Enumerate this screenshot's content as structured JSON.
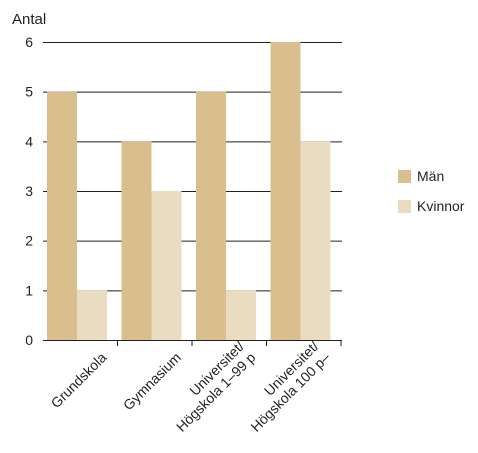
{
  "chart_data": {
    "type": "bar",
    "title": "",
    "ylabel": "Antal",
    "xlabel": "",
    "ylim": [
      0,
      6
    ],
    "yticks": [
      0,
      1,
      2,
      3,
      4,
      5,
      6
    ],
    "grid": true,
    "legend_position": "right",
    "categories": [
      [
        "Grundskola"
      ],
      [
        "Gymnasium"
      ],
      [
        "Universitet/",
        "Högskola 1–99 p"
      ],
      [
        "Universitet/",
        "Högskola 100 p–"
      ]
    ],
    "series": [
      {
        "name": "Män",
        "color": "#d9bf8e",
        "values": [
          5,
          4,
          5,
          6
        ]
      },
      {
        "name": "Kvinnor",
        "color": "#eadcc0",
        "values": [
          1,
          3,
          1,
          4
        ]
      }
    ]
  }
}
